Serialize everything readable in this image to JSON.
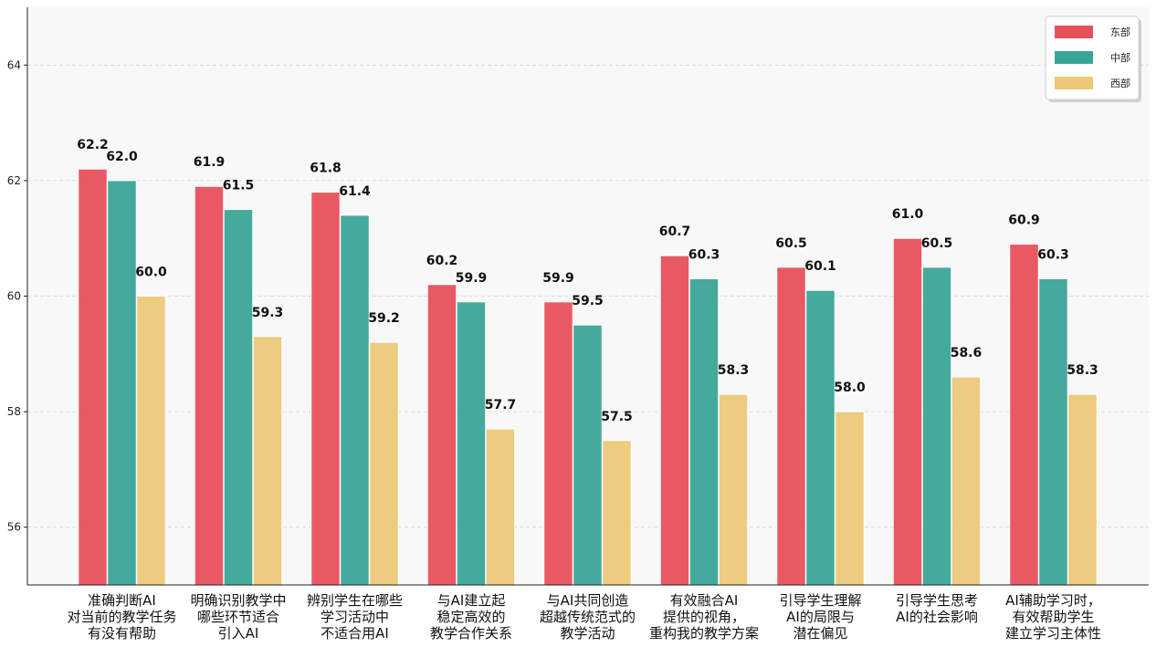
{
  "chart_data": {
    "type": "bar",
    "categories": [
      [
        "准确判断AI",
        "对当前的教学任务",
        "有没有帮助"
      ],
      [
        "明确识别教学中",
        "哪些环节适合",
        "引入AI"
      ],
      [
        "辨别学生在哪些",
        "学习活动中",
        "不适合用AI"
      ],
      [
        "与AI建立起",
        "稳定高效的",
        "教学合作关系"
      ],
      [
        "与AI共同创造",
        "超越传统范式的",
        "教学活动"
      ],
      [
        "有效融合AI",
        "提供的视角，",
        "重构我的教学方案"
      ],
      [
        "引导学生理解",
        "AI的局限与",
        "潜在偏见"
      ],
      [
        "引导学生思考",
        "AI的社会影响"
      ],
      [
        "AI辅助学习时，",
        "有效帮助学生",
        "建立学习主体性"
      ]
    ],
    "series": [
      {
        "name": "东部",
        "color": "#e8505b",
        "values": [
          62.2,
          61.9,
          61.8,
          60.2,
          59.9,
          60.7,
          60.5,
          61.0,
          60.9
        ]
      },
      {
        "name": "中部",
        "color": "#3aa597",
        "values": [
          62.0,
          61.5,
          61.4,
          59.9,
          59.5,
          60.3,
          60.1,
          60.5,
          60.3
        ]
      },
      {
        "name": "西部",
        "color": "#ecc878",
        "values": [
          60.0,
          59.3,
          59.2,
          57.7,
          57.5,
          58.3,
          58.0,
          58.6,
          58.3
        ]
      }
    ],
    "title": "",
    "xlabel": "",
    "ylabel": "",
    "ylim": [
      55,
      65
    ],
    "yticks": [
      56,
      58,
      60,
      62,
      64
    ],
    "grid": "y-dashed",
    "legend": "top-right"
  }
}
